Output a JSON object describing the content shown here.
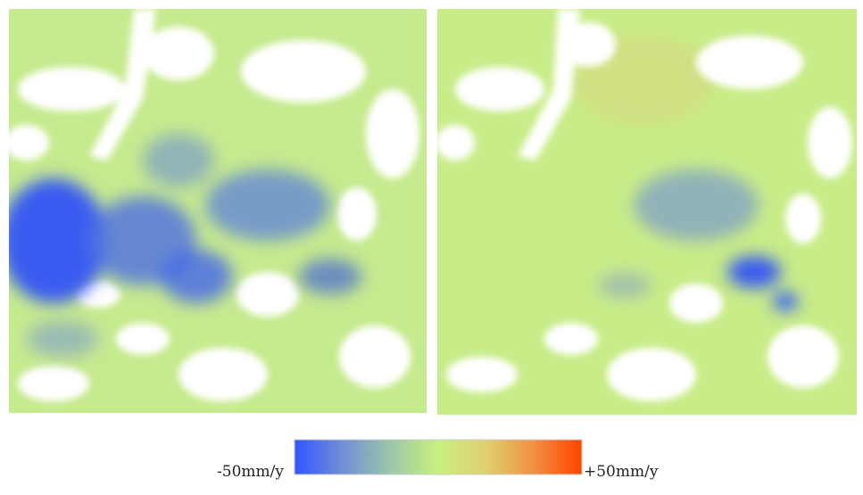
{
  "colorbar": {
    "min_label": "-50mm/y",
    "max_label": "+50mm/y",
    "colors": [
      "#3355ff",
      "#6f8fd6",
      "#9cc6a8",
      "#c8f080",
      "#dfd070",
      "#f09040",
      "#ff4400"
    ]
  }
}
